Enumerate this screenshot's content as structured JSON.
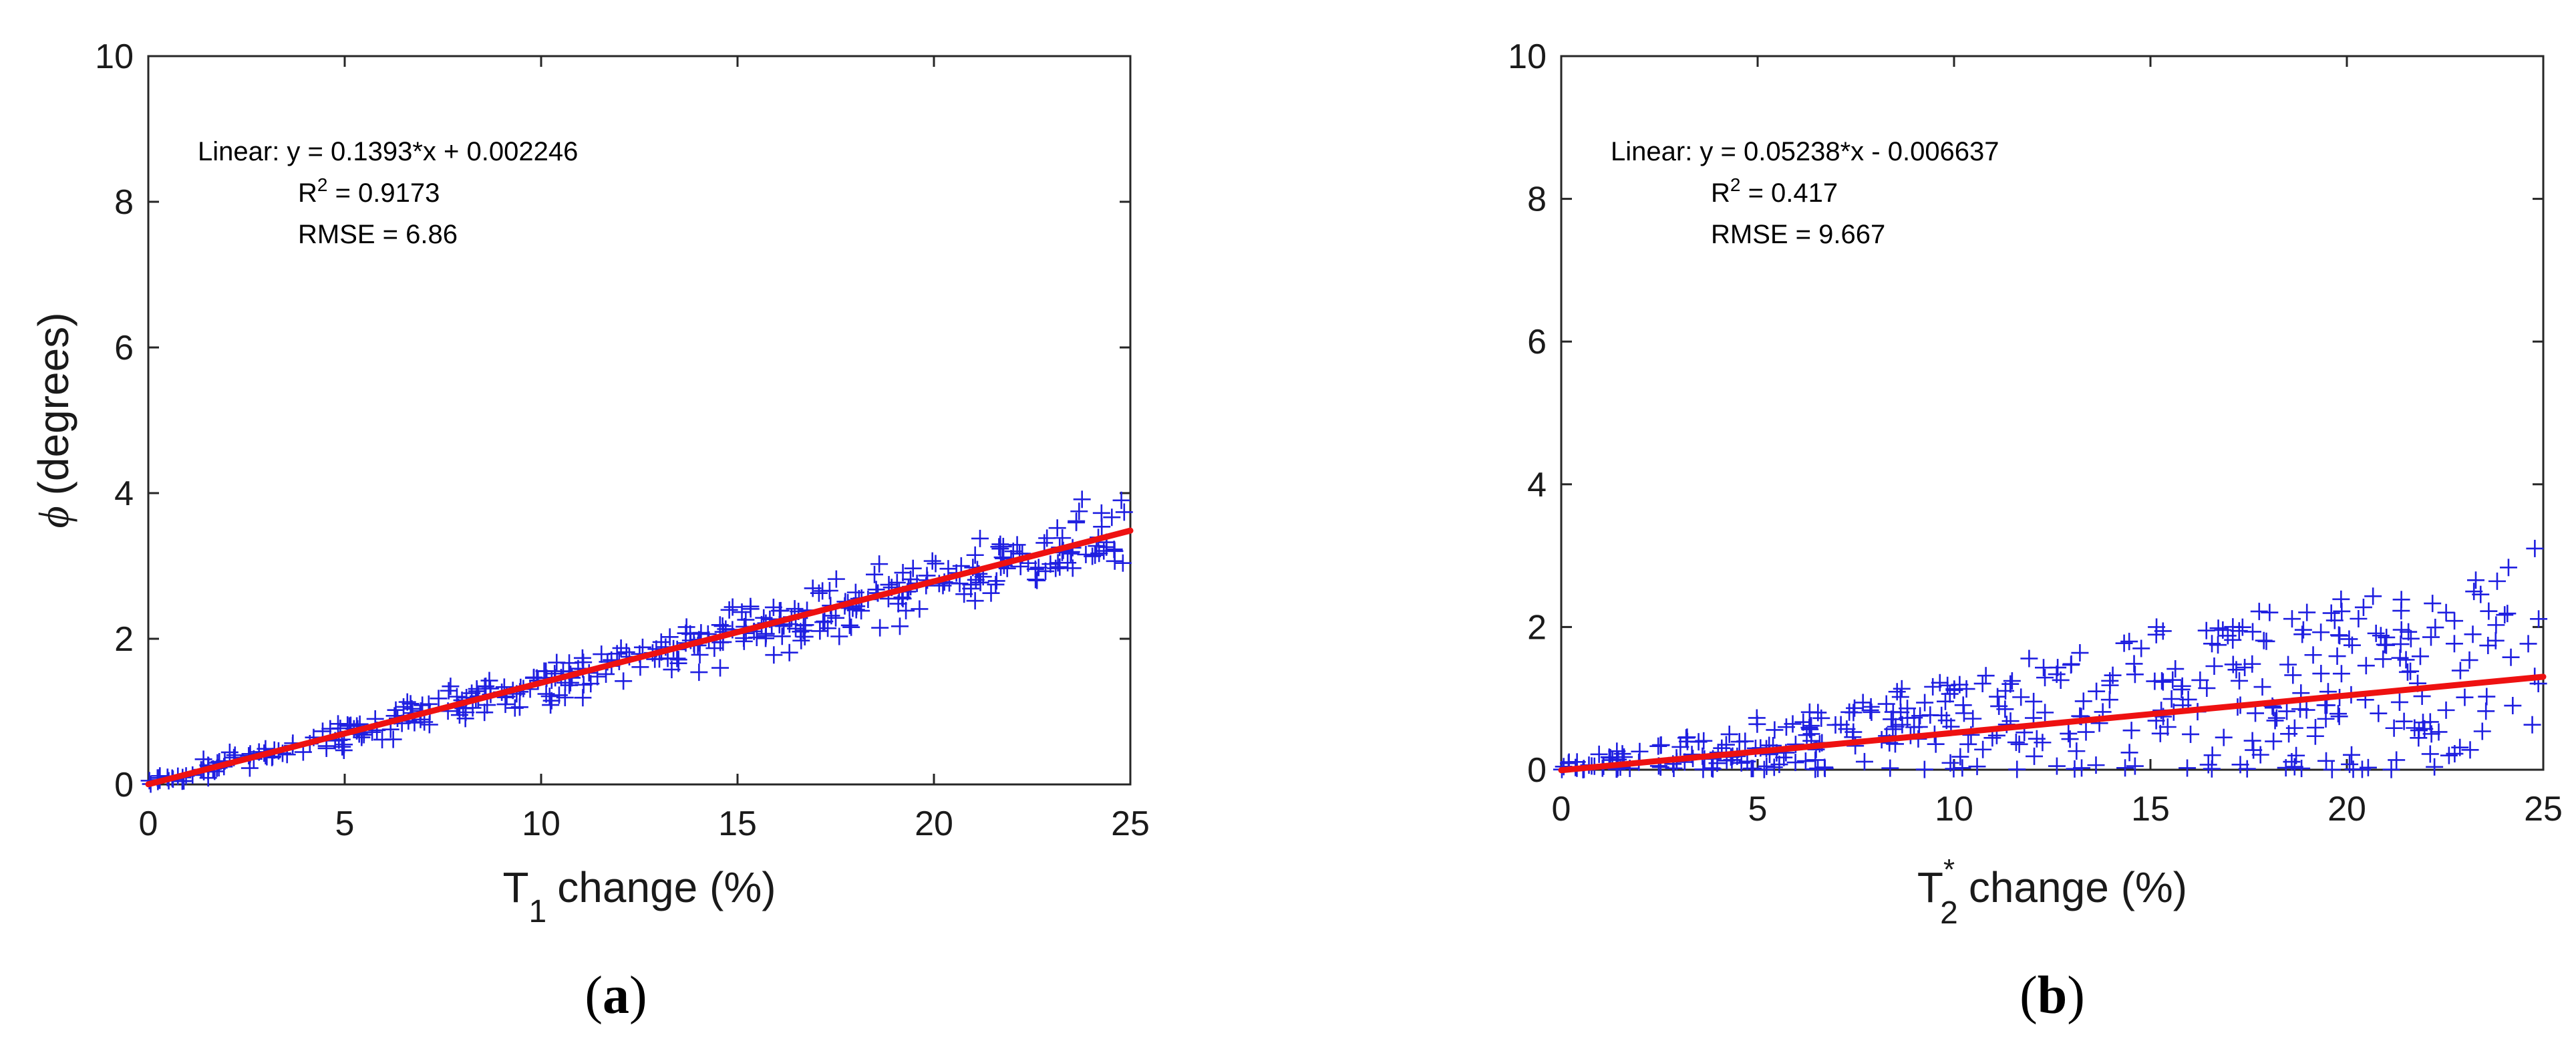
{
  "chart_data": [
    {
      "type": "scatter",
      "panel_label": "a",
      "xlabel": {
        "main": "T",
        "sub": "1",
        "rest": "change (%)"
      },
      "ylabel": "(degrees)",
      "ylabel_symbol": "ϕ",
      "xlim": [
        0,
        25
      ],
      "ylim": [
        0,
        10
      ],
      "xticks": [
        "0",
        "5",
        "10",
        "15",
        "20",
        "25"
      ],
      "yticks": [
        "0",
        "2",
        "4",
        "6",
        "8",
        "10"
      ],
      "marker": "+",
      "marker_color": "#1f1fe0",
      "fit_color": "#ee1111",
      "fit": {
        "slope": 0.1393,
        "intercept": 0.002246
      },
      "noise": 0.055,
      "n_points": 420,
      "seed": 7,
      "annotation": {
        "equation": "Linear:  y = 0.1393*x + 0.002246",
        "r2_prefix": "R",
        "r2_sup": "2",
        "r2_value": " = 0.9173",
        "rmse": "RMSE = 6.86"
      }
    },
    {
      "type": "scatter",
      "panel_label": "b",
      "xlabel": {
        "main": "T",
        "sup": "*",
        "sub": "2",
        "rest": "change (%)"
      },
      "ylabel": "",
      "xlim": [
        0,
        25
      ],
      "ylim": [
        0,
        10
      ],
      "xticks": [
        "0",
        "5",
        "10",
        "15",
        "20",
        "25"
      ],
      "yticks": [
        "0",
        "2",
        "4",
        "6",
        "8",
        "10"
      ],
      "marker": "+",
      "marker_color": "#1f1fe0",
      "fit_color": "#ee1111",
      "fit": {
        "slope": 0.05238,
        "intercept": -0.006637
      },
      "noise": 0.55,
      "n_points": 420,
      "seed": 19,
      "annotation": {
        "equation": "Linear:  y = 0.05238*x - 0.006637",
        "r2_prefix": "R",
        "r2_sup": "2",
        "r2_value": " = 0.417",
        "rmse": "RMSE = 9.667"
      }
    }
  ]
}
